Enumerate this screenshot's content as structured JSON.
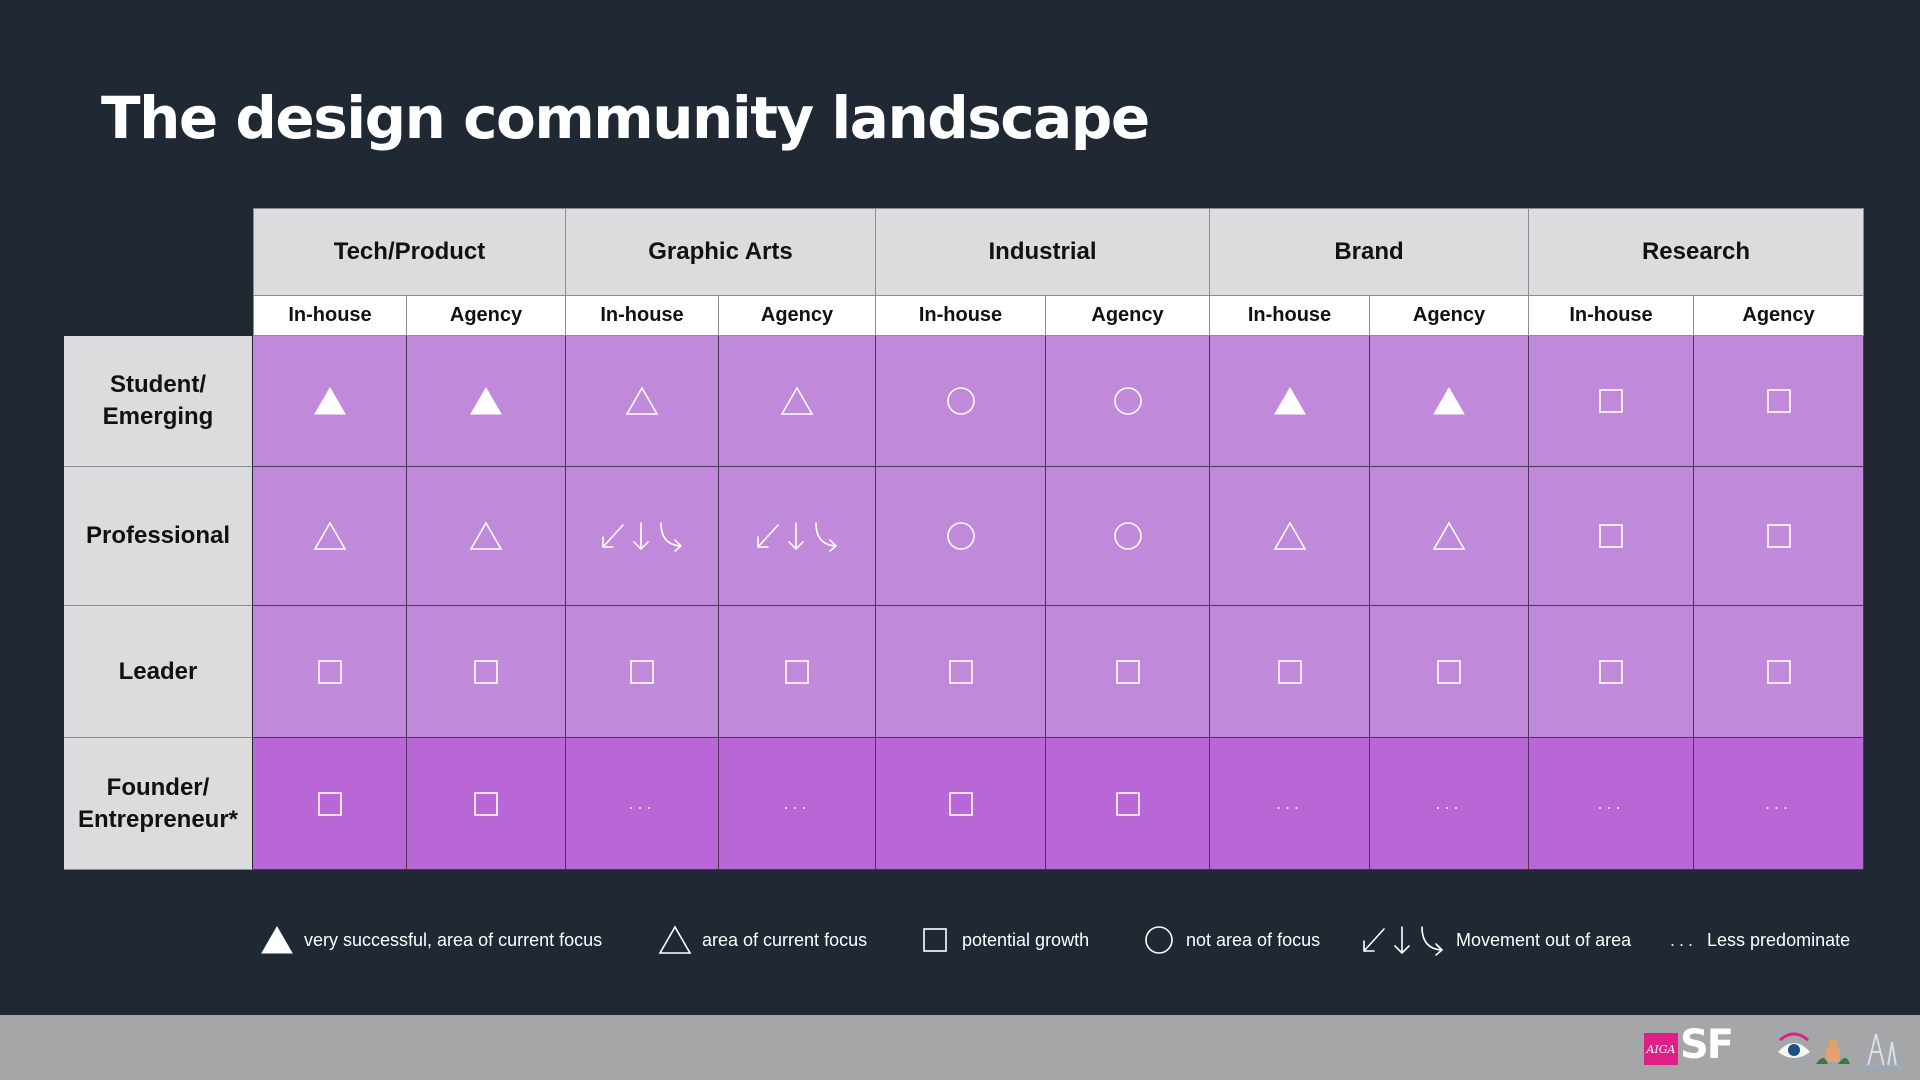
{
  "title": "The design community landscape",
  "groups": [
    "Tech/Product",
    "Graphic Arts",
    "Industrial",
    "Brand",
    "Research"
  ],
  "subcolumns": [
    "In-house",
    "Agency",
    "In-house",
    "Agency",
    "In-house",
    "Agency",
    "In-house",
    "Agency",
    "In-house",
    "Agency"
  ],
  "rows": [
    {
      "label_lines": [
        "Student/",
        "Emerging"
      ],
      "cells": [
        "solid-triangle-icon",
        "solid-triangle-icon",
        "outline-triangle-icon",
        "outline-triangle-icon",
        "circle-icon",
        "circle-icon",
        "solid-triangle-icon",
        "solid-triangle-icon",
        "square-icon",
        "square-icon"
      ]
    },
    {
      "label_lines": [
        "Professional"
      ],
      "cells": [
        "outline-triangle-icon",
        "outline-triangle-icon",
        "movement-arrows-icon",
        "movement-arrows-icon",
        "circle-icon",
        "circle-icon",
        "outline-triangle-icon",
        "outline-triangle-icon",
        "square-icon",
        "square-icon"
      ]
    },
    {
      "label_lines": [
        "Leader"
      ],
      "cells": [
        "square-icon",
        "square-icon",
        "square-icon",
        "square-icon",
        "square-icon",
        "square-icon",
        "square-icon",
        "square-icon",
        "square-icon",
        "square-icon"
      ]
    },
    {
      "label_lines": [
        "Founder/",
        "Entrepreneur*"
      ],
      "cells": [
        "square-icon",
        "square-icon",
        "dots",
        "dots",
        "square-icon",
        "square-icon",
        "dots",
        "dots",
        "dots",
        "dots"
      ]
    }
  ],
  "dots_text": "...",
  "colors": {
    "background": "#1f2833",
    "cell_light": "#c089d9",
    "cell_dark": "#b966d6",
    "header": "#dcdcdf",
    "footer": "#a4a6a7",
    "aiga_pink": "#e01f86"
  },
  "legend": [
    {
      "icon": "solid-triangle-icon",
      "label": "very successful, area of current focus"
    },
    {
      "icon": "outline-triangle-icon",
      "label": "area of current focus"
    },
    {
      "icon": "square-icon",
      "label": "potential growth"
    },
    {
      "icon": "circle-icon",
      "label": "not area of focus"
    },
    {
      "icon": "movement-arrows-icon",
      "label": "Movement out of area"
    },
    {
      "icon": "dots",
      "label": "Less predominate"
    }
  ],
  "footer": {
    "aiga": "AIGA",
    "sf": "SF"
  }
}
